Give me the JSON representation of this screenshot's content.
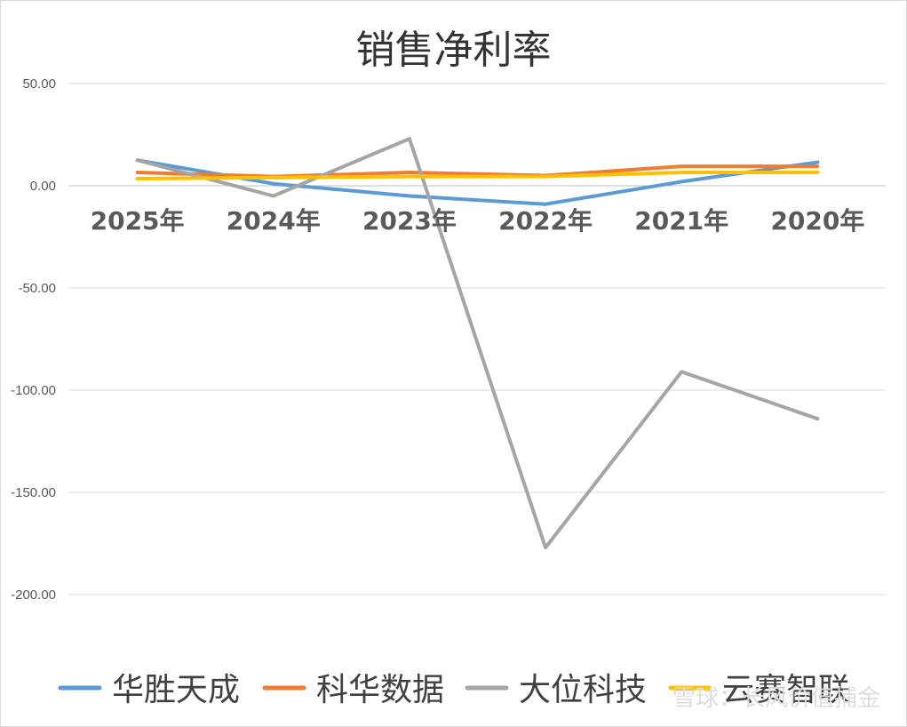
{
  "chart_data": {
    "type": "line",
    "title": "销售净利率",
    "categories": [
      "2025年",
      "2024年",
      "2023年",
      "2022年",
      "2021年",
      "2020年"
    ],
    "ylim": [
      -250,
      50
    ],
    "yticks": [
      "50.00",
      "0.00",
      "-50.00",
      "-100.00",
      "-150.00",
      "-200.00"
    ],
    "grid": true,
    "legend": "bottom",
    "series": [
      {
        "name": "华胜天成",
        "color": "#5b9bd5",
        "values": [
          12.5,
          1,
          -5,
          -9,
          2,
          11.5
        ]
      },
      {
        "name": "科华数据",
        "color": "#ed7d31",
        "values": [
          6.5,
          4.5,
          6.5,
          5,
          9.5,
          9.5
        ]
      },
      {
        "name": "大位科技",
        "color": "#a5a5a5",
        "values": [
          12.5,
          -5,
          23,
          -177,
          -91,
          -114
        ]
      },
      {
        "name": "云赛智联",
        "color": "#ffc000",
        "values": [
          3.5,
          4,
          4.5,
          4.5,
          6.5,
          6.5
        ]
      }
    ]
  },
  "watermark": "雪球：长风价值捕金"
}
